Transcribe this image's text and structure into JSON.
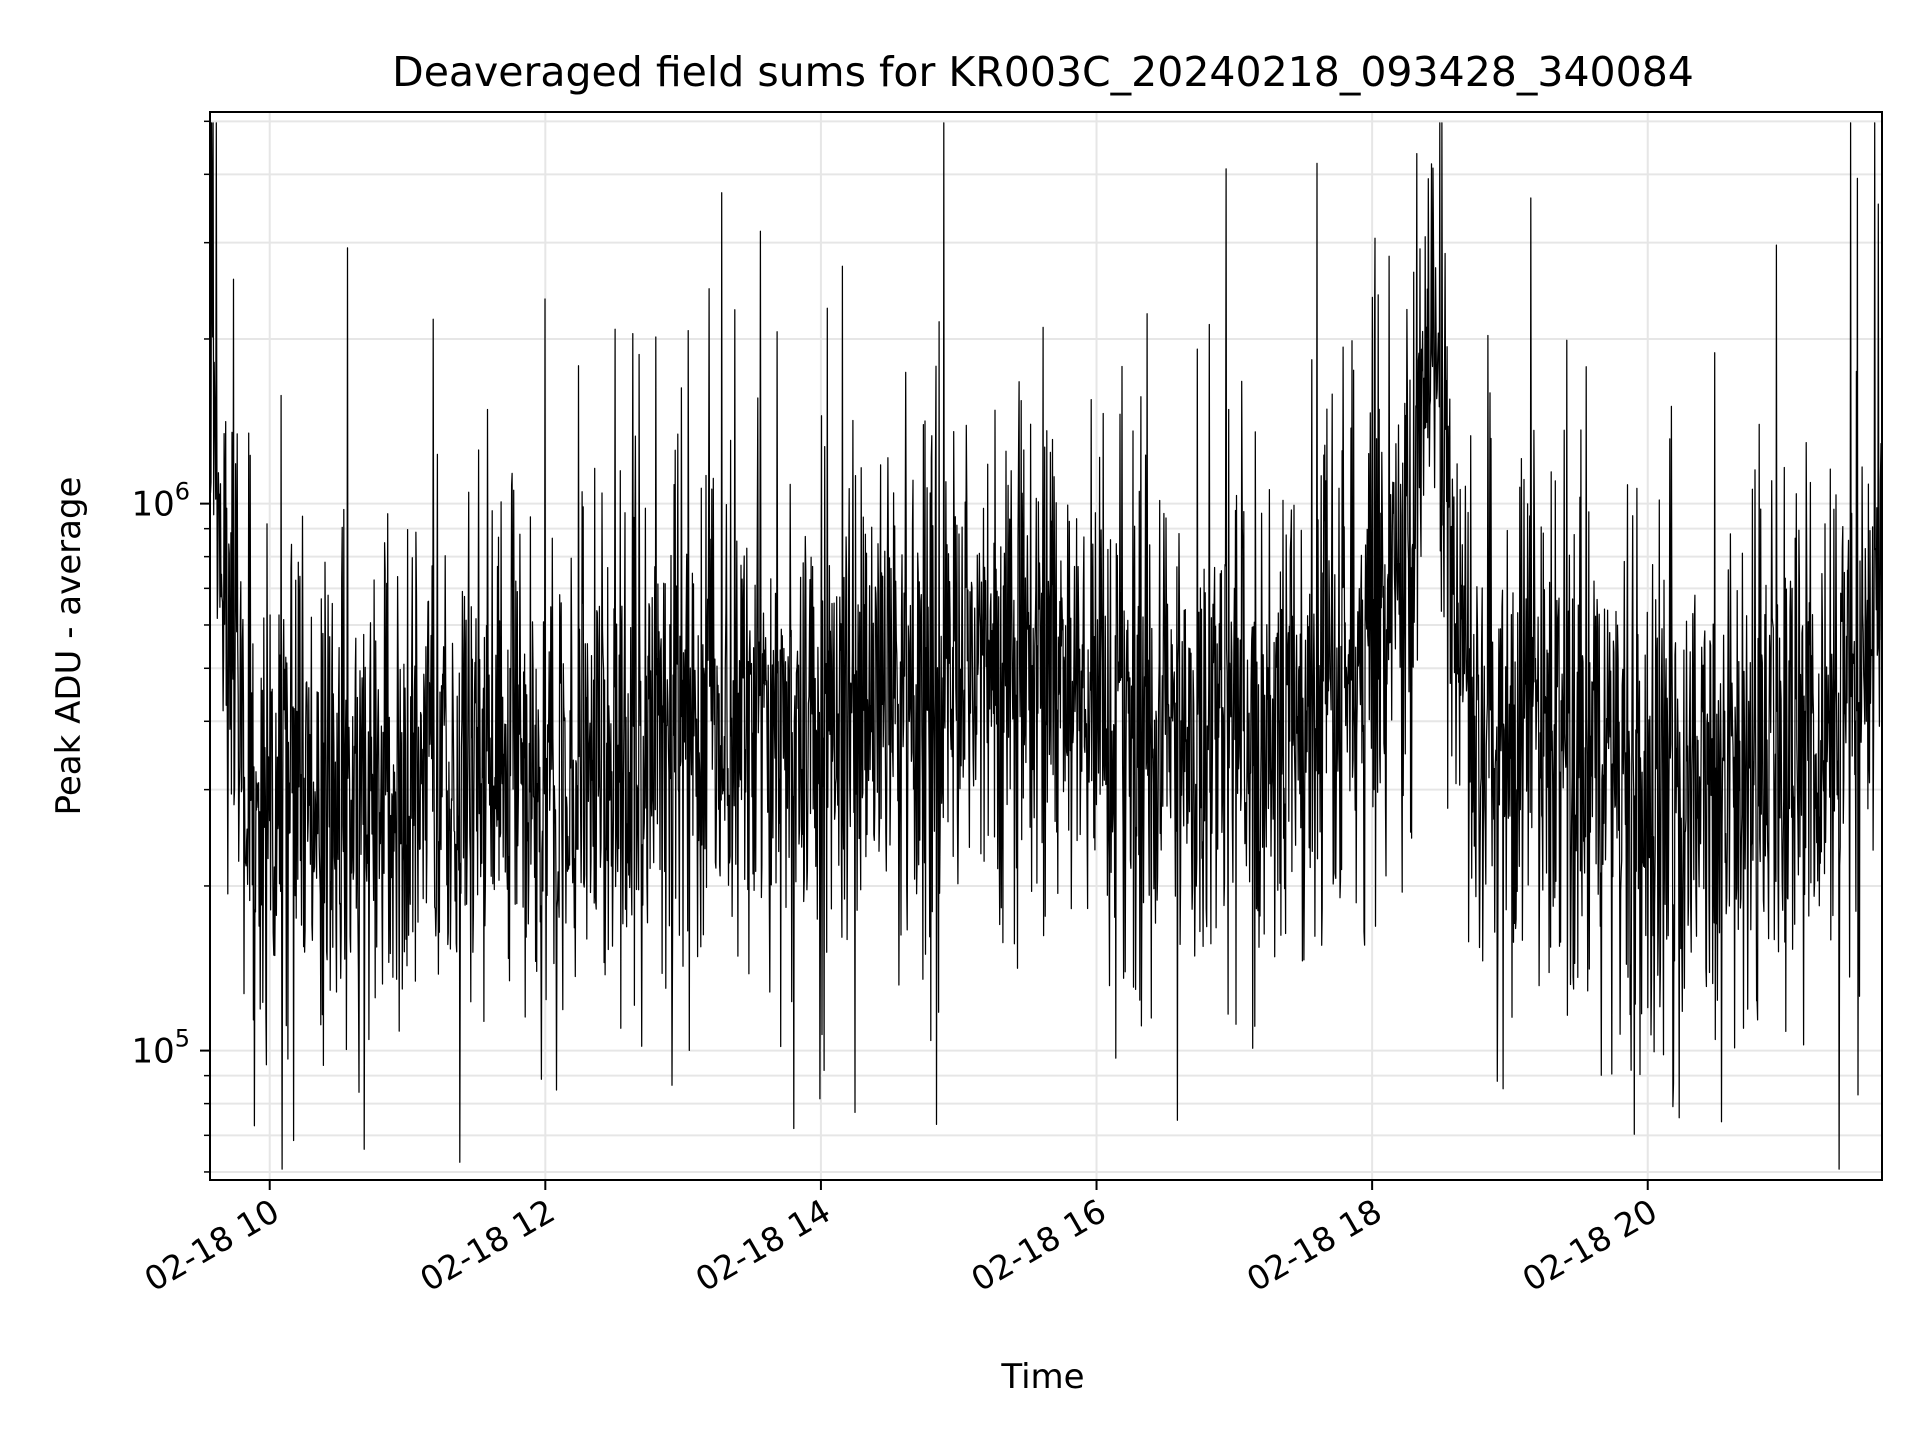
{
  "chart_data": {
    "type": "line",
    "title": "Deaveraged field sums for KR003C_20240218_093428_340084",
    "xlabel": "Time",
    "ylabel": "Peak ADU - average",
    "x_range": [
      "2024-02-18T09:34:28",
      "2024-02-18T21:42:00"
    ],
    "y_range": [
      58000,
      5200000
    ],
    "yscale": "log",
    "grid": true,
    "line_color": "#000000",
    "x_ticks": [
      {
        "value": "2024-02-18T10:00",
        "label": "02-18 10"
      },
      {
        "value": "2024-02-18T12:00",
        "label": "02-18 12"
      },
      {
        "value": "2024-02-18T14:00",
        "label": "02-18 14"
      },
      {
        "value": "2024-02-18T16:00",
        "label": "02-18 16"
      },
      {
        "value": "2024-02-18T18:00",
        "label": "02-18 18"
      },
      {
        "value": "2024-02-18T20:00",
        "label": "02-18 20"
      }
    ],
    "y_ticks": [
      {
        "value": 100000,
        "base": "10",
        "exp": "5"
      },
      {
        "value": 1000000,
        "base": "10",
        "exp": "6"
      }
    ],
    "series": [
      {
        "name": "",
        "points": [
          [
            "2024-02-18T09:35",
            1500000
          ],
          [
            "2024-02-18T09:40",
            700000
          ],
          [
            "2024-02-18T09:45",
            450000
          ],
          [
            "2024-02-18T09:50",
            300000
          ],
          [
            "2024-02-18T09:55",
            250000
          ],
          [
            "2024-02-18T10:00",
            280000
          ],
          [
            "2024-02-18T10:10",
            320000
          ],
          [
            "2024-02-18T10:20",
            270000
          ],
          [
            "2024-02-18T10:30",
            300000
          ],
          [
            "2024-02-18T10:40",
            280000
          ],
          [
            "2024-02-18T10:50",
            310000
          ],
          [
            "2024-02-18T11:00",
            300000
          ],
          [
            "2024-02-18T11:10",
            360000
          ],
          [
            "2024-02-18T11:20",
            330000
          ],
          [
            "2024-02-18T11:30",
            340000
          ],
          [
            "2024-02-18T11:40",
            320000
          ],
          [
            "2024-02-18T11:50",
            330000
          ],
          [
            "2024-02-18T12:00",
            320000
          ],
          [
            "2024-02-18T12:10",
            300000
          ],
          [
            "2024-02-18T12:20",
            310000
          ],
          [
            "2024-02-18T12:30",
            330000
          ],
          [
            "2024-02-18T12:45",
            380000
          ],
          [
            "2024-02-18T13:00",
            400000
          ],
          [
            "2024-02-18T13:15",
            380000
          ],
          [
            "2024-02-18T13:30",
            400000
          ],
          [
            "2024-02-18T13:45",
            390000
          ],
          [
            "2024-02-18T14:00",
            370000
          ],
          [
            "2024-02-18T14:15",
            400000
          ],
          [
            "2024-02-18T14:30",
            430000
          ],
          [
            "2024-02-18T14:45",
            450000
          ],
          [
            "2024-02-18T15:00",
            470000
          ],
          [
            "2024-02-18T15:15",
            480000
          ],
          [
            "2024-02-18T15:30",
            490000
          ],
          [
            "2024-02-18T15:45",
            470000
          ],
          [
            "2024-02-18T16:00",
            440000
          ],
          [
            "2024-02-18T16:15",
            410000
          ],
          [
            "2024-02-18T16:30",
            380000
          ],
          [
            "2024-02-18T16:45",
            370000
          ],
          [
            "2024-02-18T17:00",
            360000
          ],
          [
            "2024-02-18T17:15",
            380000
          ],
          [
            "2024-02-18T17:30",
            420000
          ],
          [
            "2024-02-18T17:45",
            450000
          ],
          [
            "2024-02-18T18:00",
            520000
          ],
          [
            "2024-02-18T18:10",
            700000
          ],
          [
            "2024-02-18T18:20",
            1200000
          ],
          [
            "2024-02-18T18:25",
            1800000
          ],
          [
            "2024-02-18T18:30",
            1500000
          ],
          [
            "2024-02-18T18:35",
            900000
          ],
          [
            "2024-02-18T18:40",
            450000
          ],
          [
            "2024-02-18T18:50",
            330000
          ],
          [
            "2024-02-18T19:00",
            420000
          ],
          [
            "2024-02-18T19:15",
            380000
          ],
          [
            "2024-02-18T19:30",
            350000
          ],
          [
            "2024-02-18T19:45",
            320000
          ],
          [
            "2024-02-18T20:00",
            300000
          ],
          [
            "2024-02-18T20:15",
            290000
          ],
          [
            "2024-02-18T20:30",
            280000
          ],
          [
            "2024-02-18T20:45",
            300000
          ],
          [
            "2024-02-18T21:00",
            320000
          ],
          [
            "2024-02-18T21:15",
            330000
          ],
          [
            "2024-02-18T21:30",
            500000
          ],
          [
            "2024-02-18T21:42",
            600000
          ]
        ]
      }
    ]
  }
}
